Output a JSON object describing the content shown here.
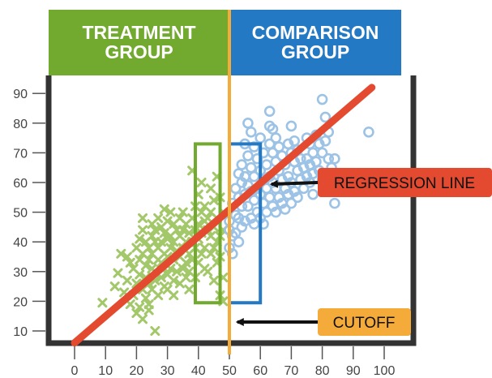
{
  "chart_data": {
    "type": "scatter",
    "title": "",
    "xlabel": "",
    "ylabel": "",
    "xlim": [
      0,
      100
    ],
    "ylim": [
      6,
      96
    ],
    "x_ticks": [
      0,
      10,
      20,
      30,
      40,
      50,
      60,
      70,
      80,
      90,
      100
    ],
    "y_ticks": [
      10,
      20,
      30,
      40,
      50,
      60,
      70,
      80,
      90
    ],
    "grid": false,
    "groups": {
      "treatment": {
        "label": "TREATMENT\nGROUP",
        "color": "#72a92f"
      },
      "comparison": {
        "label": "COMPARISON\nGROUP",
        "color": "#2479c4"
      }
    },
    "colors": {
      "treatment_points": "#a3c86a",
      "comparison_points": "#9cc3e6",
      "regression_line": "#e34a2f",
      "cutoff": "#f5ab3a",
      "treatment_box": "#72a92f",
      "comparison_box": "#2479c4",
      "axis": "#333333"
    },
    "series": [
      {
        "marker": "x",
        "points": [
          [
            9,
            19.5
          ],
          [
            13,
            25
          ],
          [
            14,
            29.5
          ],
          [
            15,
            36
          ],
          [
            16,
            23
          ],
          [
            17,
            35
          ],
          [
            17,
            27
          ],
          [
            18,
            33
          ],
          [
            18,
            19
          ],
          [
            19,
            31
          ],
          [
            19,
            22
          ],
          [
            20,
            38
          ],
          [
            20,
            26
          ],
          [
            20,
            16
          ],
          [
            21,
            41
          ],
          [
            21,
            34
          ],
          [
            21,
            29
          ],
          [
            21,
            18
          ],
          [
            22,
            48
          ],
          [
            22,
            44
          ],
          [
            22,
            36
          ],
          [
            22,
            24
          ],
          [
            22,
            14
          ],
          [
            23,
            40
          ],
          [
            23,
            32
          ],
          [
            23,
            28
          ],
          [
            23,
            21
          ],
          [
            24,
            38
          ],
          [
            24,
            34
          ],
          [
            24,
            26
          ],
          [
            24,
            19
          ],
          [
            24,
            17
          ],
          [
            25,
            46
          ],
          [
            25,
            42
          ],
          [
            25,
            36
          ],
          [
            25,
            31
          ],
          [
            25,
            24
          ],
          [
            26,
            44
          ],
          [
            26,
            40
          ],
          [
            26,
            30
          ],
          [
            26,
            27
          ],
          [
            26,
            10
          ],
          [
            27,
            48
          ],
          [
            27,
            38
          ],
          [
            27,
            34
          ],
          [
            27,
            22
          ],
          [
            28,
            45
          ],
          [
            28,
            40
          ],
          [
            28,
            33
          ],
          [
            28,
            28
          ],
          [
            29,
            51
          ],
          [
            29,
            43
          ],
          [
            29,
            36
          ],
          [
            29,
            31
          ],
          [
            29,
            25
          ],
          [
            30,
            47
          ],
          [
            30,
            41
          ],
          [
            30,
            35
          ],
          [
            30,
            29
          ],
          [
            30,
            24
          ],
          [
            31,
            50
          ],
          [
            31,
            42
          ],
          [
            31,
            38
          ],
          [
            31,
            31
          ],
          [
            32,
            46
          ],
          [
            32,
            40
          ],
          [
            32,
            34
          ],
          [
            32,
            27
          ],
          [
            32,
            22
          ],
          [
            33,
            44
          ],
          [
            33,
            37
          ],
          [
            33,
            30
          ],
          [
            34,
            48
          ],
          [
            34,
            42
          ],
          [
            34,
            35
          ],
          [
            34,
            26
          ],
          [
            35,
            50
          ],
          [
            35,
            44
          ],
          [
            35,
            38
          ],
          [
            35,
            31
          ],
          [
            36,
            46
          ],
          [
            36,
            40
          ],
          [
            36,
            33
          ],
          [
            36,
            28
          ],
          [
            37,
            43
          ],
          [
            37,
            36
          ],
          [
            37,
            30
          ],
          [
            37,
            24
          ],
          [
            38,
            64
          ],
          [
            38,
            48
          ],
          [
            38,
            40
          ],
          [
            38,
            34
          ],
          [
            39,
            52
          ],
          [
            39,
            44
          ],
          [
            39,
            38
          ],
          [
            39,
            28
          ],
          [
            40,
            56
          ],
          [
            40,
            46
          ],
          [
            40,
            41
          ],
          [
            40,
            33
          ],
          [
            41,
            60
          ],
          [
            41,
            50
          ],
          [
            41,
            43
          ],
          [
            41,
            36
          ],
          [
            42,
            52
          ],
          [
            42,
            47
          ],
          [
            42,
            38
          ],
          [
            42,
            31
          ],
          [
            43,
            48
          ],
          [
            43,
            44
          ],
          [
            43,
            30
          ],
          [
            44,
            58
          ],
          [
            44,
            50
          ],
          [
            44,
            42
          ],
          [
            44,
            36
          ],
          [
            45,
            54
          ],
          [
            45,
            45
          ],
          [
            45,
            38
          ],
          [
            45,
            27
          ],
          [
            46,
            62
          ],
          [
            46,
            48
          ],
          [
            46,
            40
          ],
          [
            46,
            33
          ],
          [
            47,
            55
          ],
          [
            47,
            42
          ],
          [
            47,
            35
          ],
          [
            47,
            22
          ],
          [
            48,
            50
          ],
          [
            48,
            44
          ],
          [
            48,
            28
          ],
          [
            48,
            20
          ]
        ]
      },
      {
        "marker": "o",
        "points": [
          [
            50,
            47
          ],
          [
            50,
            44
          ],
          [
            50,
            38
          ],
          [
            51,
            53
          ],
          [
            51,
            42
          ],
          [
            51,
            36
          ],
          [
            52,
            58
          ],
          [
            52,
            49
          ],
          [
            52,
            43
          ],
          [
            53,
            63
          ],
          [
            53,
            55
          ],
          [
            53,
            48
          ],
          [
            53,
            40
          ],
          [
            54,
            66
          ],
          [
            54,
            60
          ],
          [
            54,
            52
          ],
          [
            54,
            45
          ],
          [
            55,
            73
          ],
          [
            55,
            62
          ],
          [
            55,
            56
          ],
          [
            55,
            47
          ],
          [
            56,
            80
          ],
          [
            56,
            69
          ],
          [
            56,
            59
          ],
          [
            56,
            52
          ],
          [
            57,
            77
          ],
          [
            57,
            65
          ],
          [
            57,
            57
          ],
          [
            57,
            48
          ],
          [
            58,
            72
          ],
          [
            58,
            62
          ],
          [
            58,
            54
          ],
          [
            58,
            46
          ],
          [
            59,
            68
          ],
          [
            59,
            58
          ],
          [
            59,
            50
          ],
          [
            60,
            75
          ],
          [
            60,
            64
          ],
          [
            60,
            56
          ],
          [
            60,
            48
          ],
          [
            61,
            70
          ],
          [
            61,
            61
          ],
          [
            61,
            53
          ],
          [
            61,
            46
          ],
          [
            62,
            66
          ],
          [
            62,
            58
          ],
          [
            62,
            50
          ],
          [
            63,
            84
          ],
          [
            63,
            79
          ],
          [
            63,
            73
          ],
          [
            63,
            62
          ],
          [
            63,
            55
          ],
          [
            64,
            78
          ],
          [
            64,
            70
          ],
          [
            64,
            60
          ],
          [
            64,
            52
          ],
          [
            65,
            75
          ],
          [
            65,
            67
          ],
          [
            65,
            58
          ],
          [
            65,
            50
          ],
          [
            66,
            72
          ],
          [
            66,
            64
          ],
          [
            66,
            55
          ],
          [
            67,
            69
          ],
          [
            67,
            61
          ],
          [
            67,
            53
          ],
          [
            68,
            66
          ],
          [
            68,
            58
          ],
          [
            68,
            51
          ],
          [
            69,
            73
          ],
          [
            69,
            62
          ],
          [
            69,
            56
          ],
          [
            70,
            79
          ],
          [
            70,
            70
          ],
          [
            70,
            60
          ],
          [
            70,
            53
          ],
          [
            71,
            74
          ],
          [
            71,
            67
          ],
          [
            71,
            57
          ],
          [
            72,
            71
          ],
          [
            72,
            64
          ],
          [
            72,
            55
          ],
          [
            73,
            68
          ],
          [
            73,
            61
          ],
          [
            74,
            65
          ],
          [
            74,
            58
          ],
          [
            75,
            75
          ],
          [
            75,
            68
          ],
          [
            75,
            62
          ],
          [
            76,
            73
          ],
          [
            76,
            66
          ],
          [
            76,
            60
          ],
          [
            77,
            70
          ],
          [
            77,
            63
          ],
          [
            77,
            56
          ],
          [
            78,
            76
          ],
          [
            78,
            67
          ],
          [
            79,
            73
          ],
          [
            79,
            64
          ],
          [
            80,
            88
          ],
          [
            80,
            70
          ],
          [
            80,
            61
          ],
          [
            81,
            82
          ],
          [
            81,
            74
          ],
          [
            82,
            77
          ],
          [
            82,
            68
          ],
          [
            83,
            65
          ],
          [
            84,
            68
          ],
          [
            84,
            53
          ],
          [
            95,
            77
          ]
        ]
      }
    ],
    "regression_line": {
      "x1": 0,
      "y1": 6,
      "x2": 96,
      "y2": 92
    },
    "cutoff_x": 50,
    "boxes": [
      {
        "group": "treatment",
        "x0": 39,
        "x1": 47,
        "y0": 19.5,
        "y1": 73
      },
      {
        "group": "comparison",
        "x0": 50,
        "x1": 60,
        "y0": 19.5,
        "y1": 73
      }
    ],
    "annotations": [
      {
        "label": "REGRESSION LINE",
        "color": "#e34a2f",
        "points_to": [
          62,
          60
        ]
      },
      {
        "label": "CUTOFF",
        "color": "#f5ab3a",
        "points_to": [
          51,
          13
        ]
      }
    ]
  }
}
